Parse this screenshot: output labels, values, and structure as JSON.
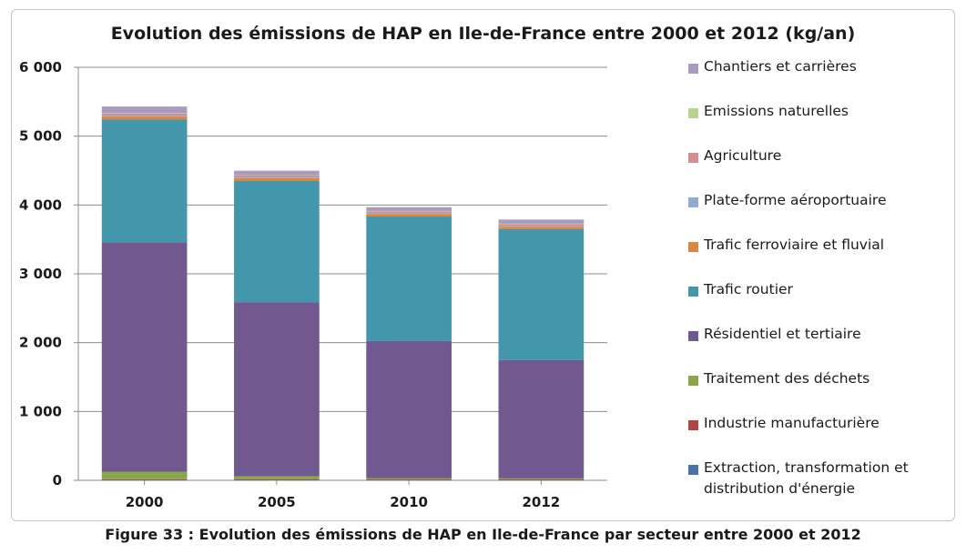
{
  "title": "Evolution des émissions de HAP en Ile-de-France entre 2000 et 2012  (kg/an)",
  "caption": "Figure 33 : Evolution des émissions de HAP en Ile-de-France par secteur entre 2000 et 2012",
  "chart_data": {
    "type": "bar",
    "stacked": true,
    "title": "Evolution des émissions de HAP en Ile-de-France entre 2000 et 2012  (kg/an)",
    "categories": [
      "2000",
      "2005",
      "2010",
      "2012"
    ],
    "ylim": [
      0,
      6000
    ],
    "yticks": [
      0,
      1000,
      2000,
      3000,
      4000,
      5000,
      6000
    ],
    "ytick_labels": [
      "0",
      "1 000",
      "2 000",
      "3 000",
      "4 000",
      "5 000",
      "6 000"
    ],
    "grid": true,
    "legend_position": "right",
    "series": [
      {
        "name": "Extraction, transformation et distribution d'énergie",
        "color": "#4a72ab",
        "values": [
          5,
          5,
          5,
          5
        ]
      },
      {
        "name": "Industrie manufacturière",
        "color": "#ad4542",
        "values": [
          10,
          8,
          8,
          8
        ]
      },
      {
        "name": "Traitement des déchets",
        "color": "#8aa54a",
        "values": [
          110,
          45,
          20,
          15
        ]
      },
      {
        "name": "Résidentiel et tertiaire",
        "color": "#71598f",
        "values": [
          3335,
          2530,
          1990,
          1720
        ]
      },
      {
        "name": "Trafic routier",
        "color": "#4397ad",
        "values": [
          1780,
          1760,
          1810,
          1900
        ]
      },
      {
        "name": "Trafic ferroviaire et fluvial",
        "color": "#d98643",
        "values": [
          45,
          40,
          35,
          35
        ]
      },
      {
        "name": "Plate-forme aéroportuaire",
        "color": "#92a9cf",
        "values": [
          10,
          10,
          10,
          10
        ]
      },
      {
        "name": "Agriculture",
        "color": "#cf9290",
        "values": [
          35,
          30,
          30,
          30
        ]
      },
      {
        "name": "Emissions naturelles",
        "color": "#b9d392",
        "values": [
          5,
          5,
          5,
          5
        ]
      },
      {
        "name": "Chantiers et carrières",
        "color": "#a99bbf",
        "values": [
          95,
          65,
          55,
          60
        ]
      }
    ]
  }
}
